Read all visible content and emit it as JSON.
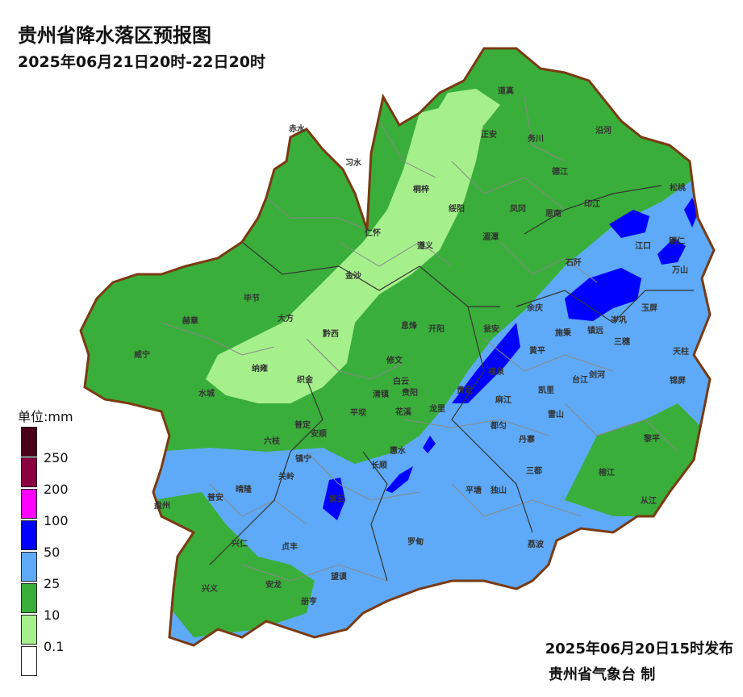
{
  "header": {
    "title": "贵州省降水落区预报图",
    "period": "2025年06月21日20时-22日20时"
  },
  "footer": {
    "publish_time": "2025年06月20日15时发布",
    "agency": "贵州省气象台 制"
  },
  "legend": {
    "title": "单位:mm",
    "thresholds": [
      "250",
      "200",
      "100",
      "50",
      "25",
      "10",
      "0.1"
    ],
    "colors": [
      "#4a0018",
      "#8a0040",
      "#ff00ff",
      "#0000ff",
      "#5eaaf8",
      "#3aae3a",
      "#a6f08c",
      "#ffffff"
    ]
  },
  "map": {
    "colors": {
      "boundary": "#7a3a12",
      "county_line": "#888888",
      "city_line": "#333333",
      "light_green": "#a6f08c",
      "green": "#3aae3a",
      "light_blue": "#5eaaf8",
      "blue": "#0000ff"
    },
    "places": [
      "道真",
      "赤水",
      "正安",
      "务川",
      "沿河",
      "习水",
      "德江",
      "桐梓",
      "绥阳",
      "凤冈",
      "印江",
      "松桃",
      "思南",
      "仁怀",
      "湄潭",
      "遵义",
      "江口",
      "石阡",
      "铜仁",
      "金沙",
      "万山",
      "毕节",
      "赫章",
      "大方",
      "息烽",
      "开阳",
      "余庆",
      "玉屏",
      "黔西",
      "施秉",
      "镇远",
      "岑巩",
      "瓮安",
      "黄平",
      "三穗",
      "天柱",
      "威宁",
      "纳雍",
      "修文",
      "织金",
      "福泉",
      "剑河",
      "台江",
      "锦屏",
      "白云",
      "贵阳",
      "凯里",
      "水城",
      "清镇",
      "平坝",
      "花溪",
      "龙里",
      "贵定",
      "麻江",
      "雷山",
      "六枝",
      "普定",
      "安顺",
      "都匀",
      "丹寨",
      "黎平",
      "长顺",
      "惠水",
      "镇宁",
      "关岭",
      "三都",
      "榕江",
      "晴隆",
      "紫云",
      "平塘",
      "独山",
      "从江",
      "普安",
      "盘州",
      "兴仁",
      "贞丰",
      "罗甸",
      "荔波",
      "兴义",
      "安龙",
      "望谟",
      "册亨"
    ]
  }
}
